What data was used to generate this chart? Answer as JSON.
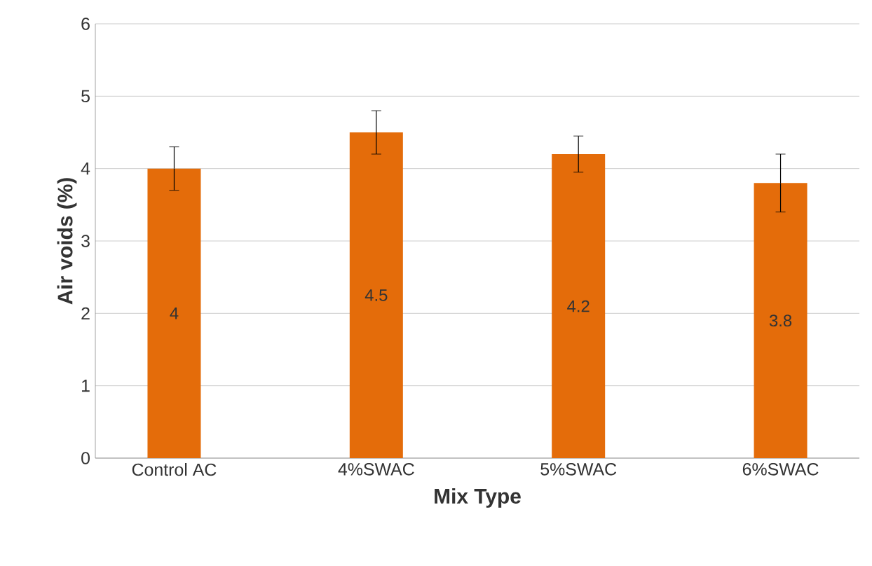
{
  "chart_data": {
    "type": "bar",
    "xlabel": "Mix Type",
    "ylabel": "Air voids (%)",
    "categories": [
      "Control AC",
      "4%SWAC",
      "5%SWAC",
      "6%SWAC"
    ],
    "values": [
      4,
      4.5,
      4.2,
      3.8
    ],
    "errors": [
      0.3,
      0.3,
      0.25,
      0.4
    ],
    "color": "#e46c0a",
    "ylim": [
      0,
      6
    ],
    "yticks": [
      0,
      1,
      2,
      3,
      4,
      5,
      6
    ],
    "grid": "y",
    "data_labels": true
  }
}
